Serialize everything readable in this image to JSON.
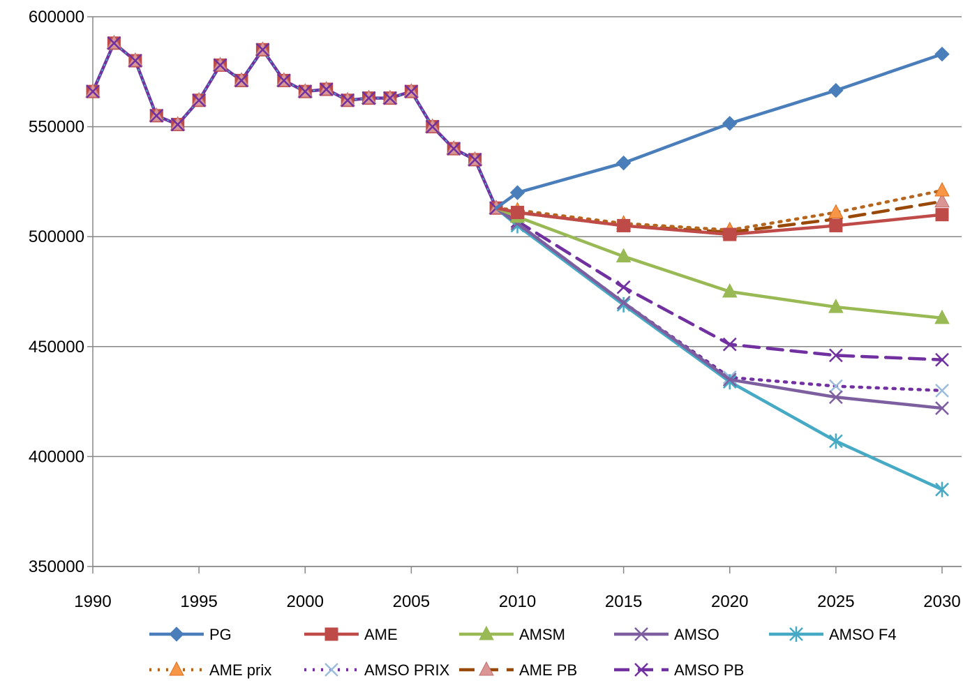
{
  "chart_data": {
    "type": "line",
    "title": "",
    "xlabel": "",
    "ylabel": "",
    "xlim": [
      1990,
      2030
    ],
    "ylim": [
      350000,
      600000
    ],
    "x_ticks": [
      1990,
      1995,
      2000,
      2005,
      2010,
      2015,
      2020,
      2025,
      2030
    ],
    "y_ticks": [
      350000,
      400000,
      450000,
      500000,
      550000,
      600000
    ],
    "grid": "horizontal",
    "legend_position": "bottom",
    "history": {
      "x": [
        1990,
        1991,
        1992,
        1993,
        1994,
        1995,
        1996,
        1997,
        1998,
        1999,
        2000,
        2001,
        2002,
        2003,
        2004,
        2005,
        2006,
        2007,
        2008,
        2009
      ],
      "y": [
        566000,
        588000,
        580000,
        555000,
        551000,
        562000,
        578000,
        571000,
        585000,
        571000,
        566000,
        567000,
        562000,
        563000,
        563000,
        566000,
        550000,
        540000,
        535000,
        513000
      ]
    },
    "series": [
      {
        "name": "PG",
        "color": "#4A7EBB",
        "dash": "solid",
        "marker": "diamond",
        "x": [
          2010,
          2015,
          2020,
          2025,
          2030
        ],
        "y": [
          520000,
          533500,
          551500,
          566500,
          583000
        ]
      },
      {
        "name": "AME",
        "color": "#BE4B48",
        "dash": "solid",
        "marker": "square",
        "x": [
          2010,
          2015,
          2020,
          2025,
          2030
        ],
        "y": [
          511000,
          505000,
          501000,
          505000,
          510000
        ]
      },
      {
        "name": "AMSM",
        "color": "#98B954",
        "dash": "solid",
        "marker": "triangle",
        "x": [
          2010,
          2015,
          2020,
          2025,
          2030
        ],
        "y": [
          509000,
          491000,
          475000,
          468000,
          463000
        ]
      },
      {
        "name": "AMSO",
        "color": "#7D5FA0",
        "dash": "solid",
        "marker": "x",
        "x": [
          2010,
          2015,
          2020,
          2025,
          2030
        ],
        "y": [
          506000,
          470000,
          435000,
          427000,
          422000
        ]
      },
      {
        "name": "AMSO F4",
        "color": "#46AAC5",
        "dash": "solid",
        "marker": "star",
        "x": [
          2010,
          2015,
          2020,
          2025,
          2030
        ],
        "y": [
          505000,
          469000,
          434000,
          407000,
          385000
        ]
      },
      {
        "name": "AME prix",
        "color": "#B5651D",
        "dash": "dotted",
        "marker": "triangle-orange",
        "x": [
          2010,
          2015,
          2020,
          2025,
          2030
        ],
        "y": [
          512000,
          506000,
          503000,
          511000,
          521000
        ]
      },
      {
        "name": "AMSO PRIX",
        "color": "#7030A0",
        "dash": "dotted",
        "marker": "x-light",
        "x": [
          2010,
          2015,
          2020,
          2025,
          2030
        ],
        "y": [
          506000,
          470000,
          436000,
          432000,
          430000
        ]
      },
      {
        "name": "AME PB",
        "color": "#984807",
        "dash": "dashed",
        "marker": "triangle-pink",
        "x": [
          2010,
          2015,
          2020,
          2025,
          2030
        ],
        "y": [
          511000,
          505000,
          502000,
          508000,
          516000
        ]
      },
      {
        "name": "AMSO PB",
        "color": "#7030A0",
        "dash": "dashed",
        "marker": "x",
        "x": [
          2010,
          2015,
          2020,
          2025,
          2030
        ],
        "y": [
          507000,
          477000,
          451000,
          446000,
          444000
        ]
      }
    ]
  }
}
